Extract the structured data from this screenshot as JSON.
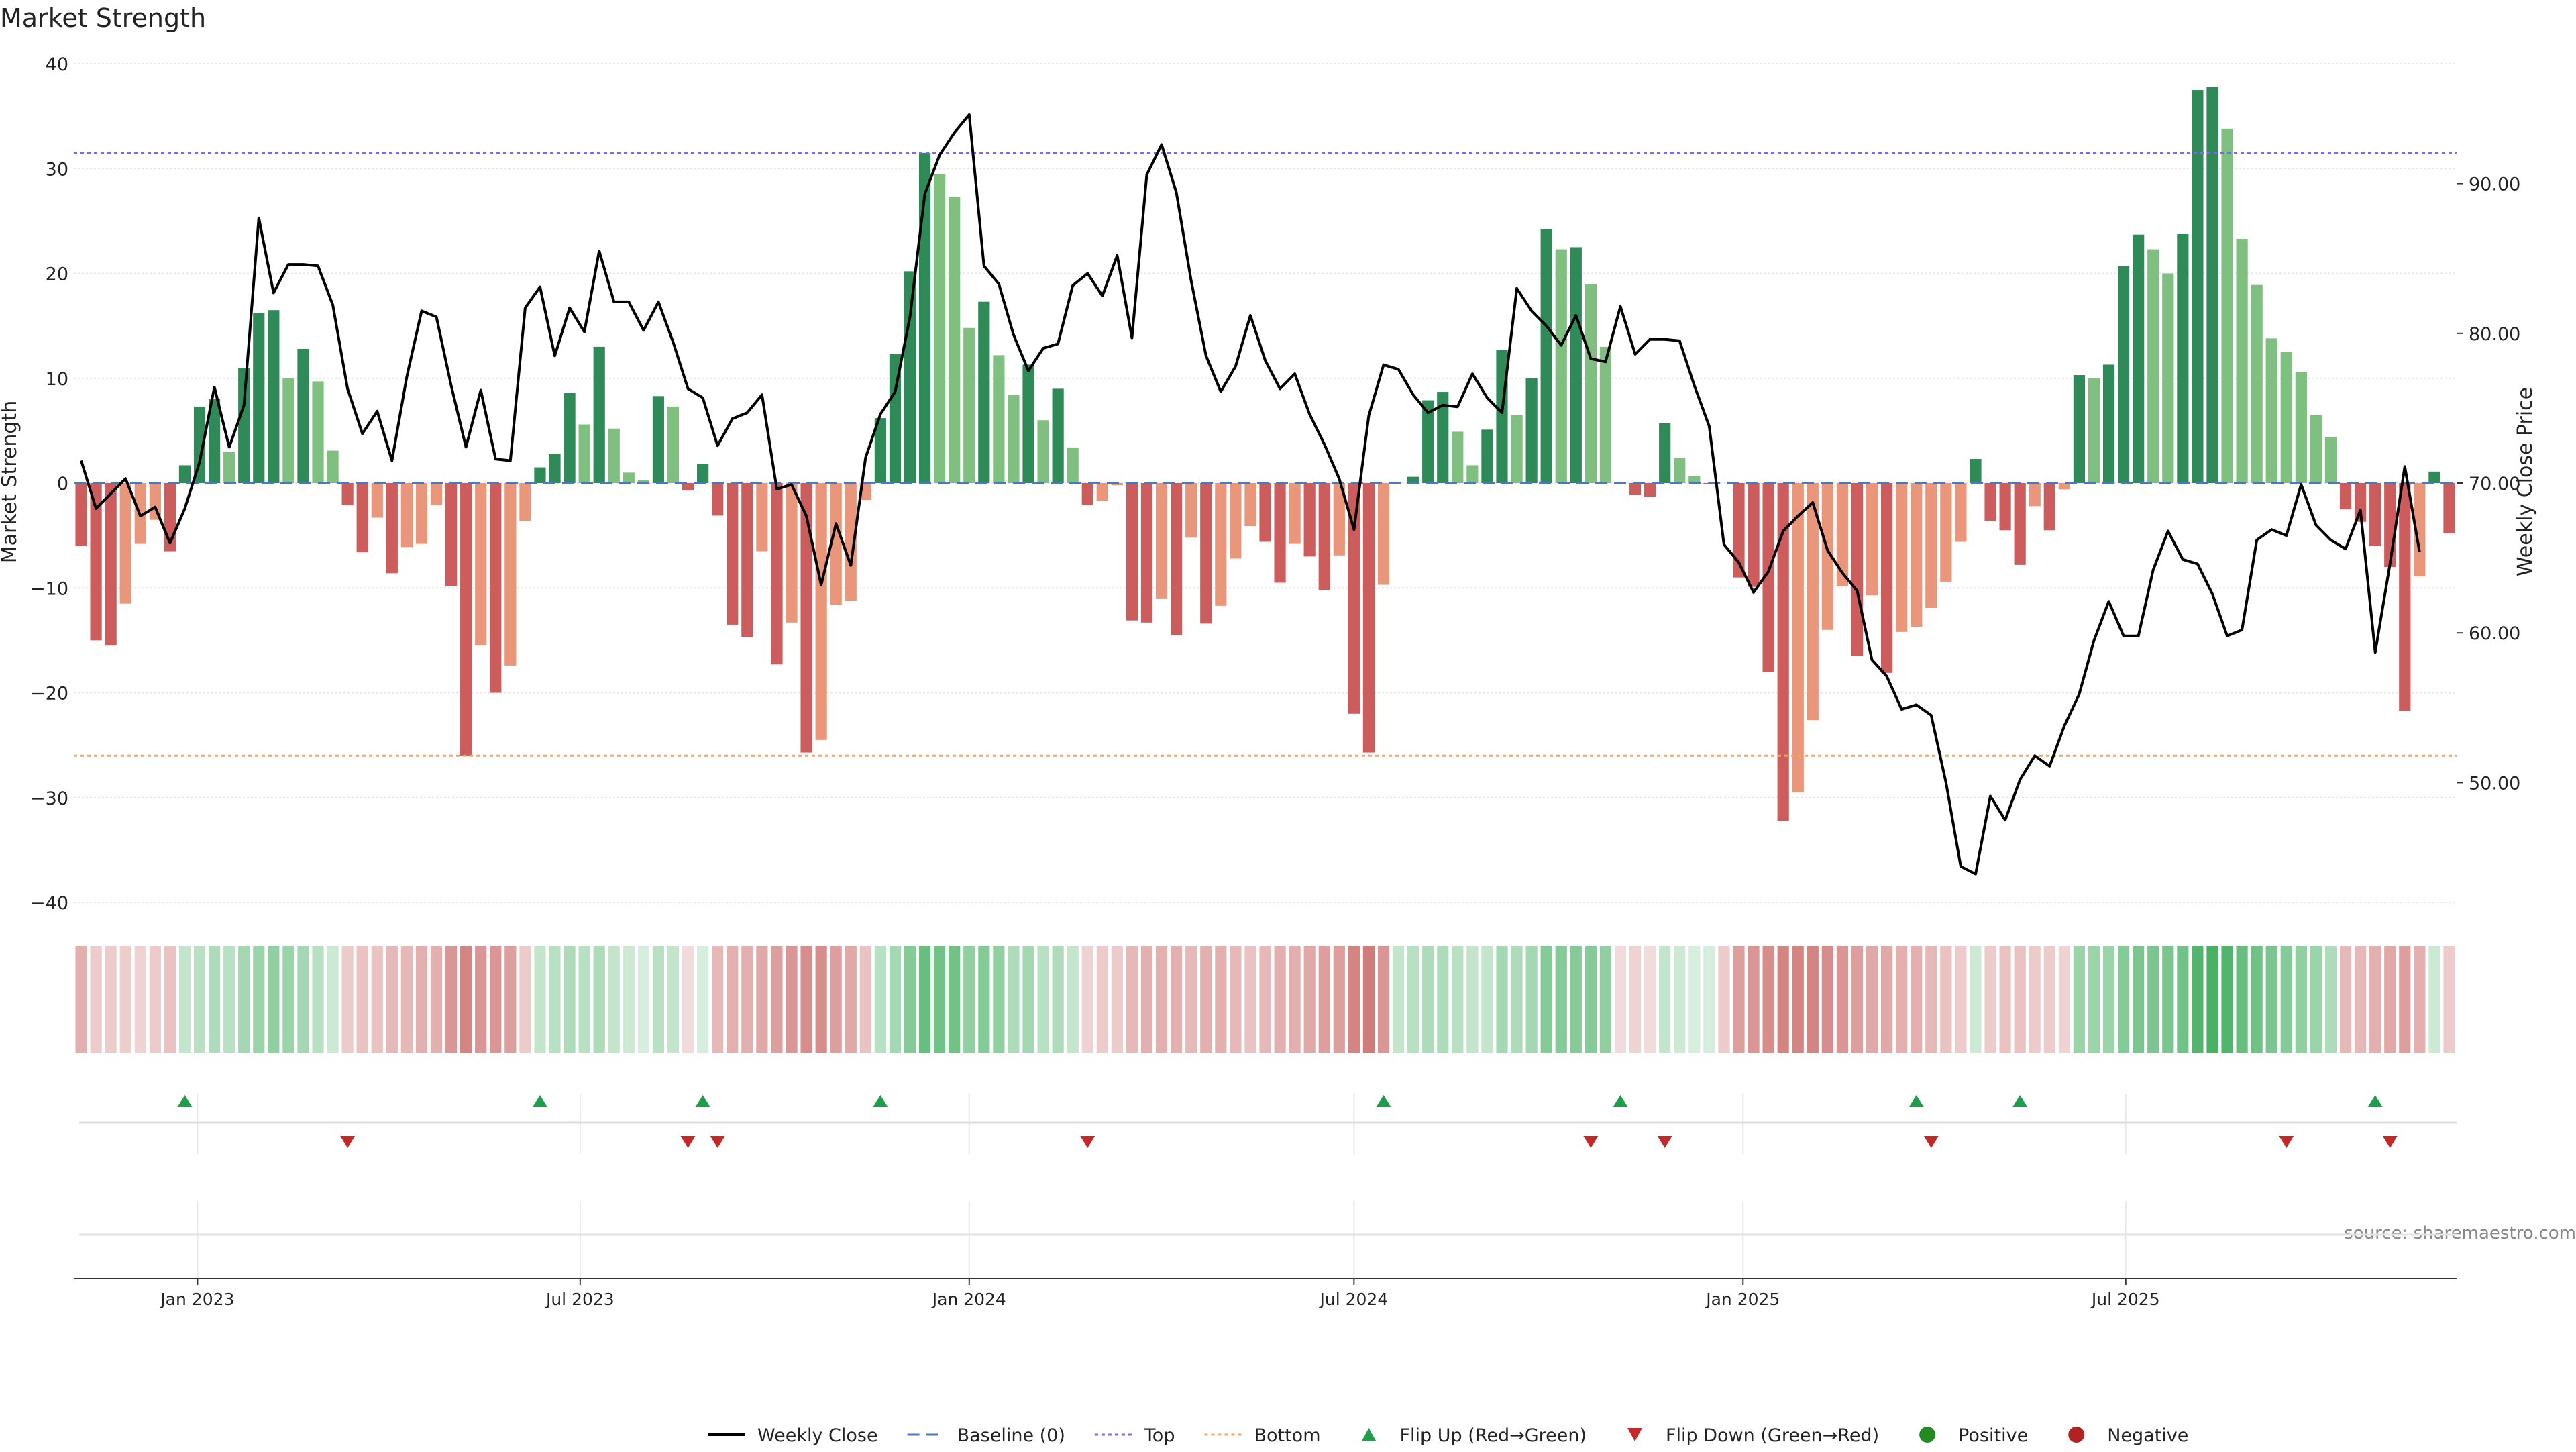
{
  "chart_data": {
    "type": "bar",
    "title": "Market Strength",
    "ylabel": "Market Strength",
    "y2label": "Weekly Close Price",
    "ylim": [
      -40,
      40
    ],
    "y2lim": [
      42,
      98
    ],
    "yticks": [
      40,
      30,
      20,
      10,
      0,
      -10,
      -20,
      -30,
      -40
    ],
    "yticklabels": [
      "40",
      "30",
      "20",
      "10",
      "0",
      "−10",
      "−20",
      "−30",
      "−40"
    ],
    "y2ticks": [
      90,
      80,
      70,
      60,
      50
    ],
    "y2ticklabels": [
      "90.00",
      "80.00",
      "70.00",
      "60.00",
      "50.00"
    ],
    "top_line": 31.5,
    "bottom_line": -26,
    "grid": true,
    "xaxis": {
      "start": "2022-11-07",
      "ticks": [
        {
          "label": "Jan 2023",
          "date": "2023-01-01"
        },
        {
          "label": "Jul 2023",
          "date": "2023-07-01"
        },
        {
          "label": "Jan 2024",
          "date": "2024-01-01"
        },
        {
          "label": "Jul 2024",
          "date": "2024-07-01"
        },
        {
          "label": "Jan 2025",
          "date": "2025-01-01"
        },
        {
          "label": "Jul 2025",
          "date": "2025-07-01"
        }
      ]
    },
    "strength": [
      -6,
      -15,
      -15.5,
      -11.5,
      -5.8,
      -3.5,
      -6.5,
      1.7,
      7.3,
      8,
      3,
      11,
      16.2,
      16.5,
      10,
      12.8,
      9.7,
      3.1,
      -2.1,
      -6.6,
      -3.3,
      -8.6,
      -6.1,
      -5.8,
      -2.1,
      -9.8,
      -26,
      -15.5,
      -20,
      -17.4,
      -3.6,
      1.5,
      2.8,
      8.6,
      5.6,
      13,
      5.2,
      1,
      0.3,
      8.3,
      7.3,
      -0.7,
      1.8,
      -3.1,
      -13.5,
      -14.7,
      -6.5,
      -17.3,
      -13.3,
      -25.7,
      -24.5,
      -11.6,
      -11.2,
      -1.6,
      6.2,
      12.3,
      20.2,
      31.5,
      29.5,
      27.3,
      14.8,
      17.3,
      12.2,
      8.4,
      11.3,
      6,
      9,
      3.4,
      -2.1,
      -1.7,
      -0.2,
      -13.1,
      -13.3,
      -11,
      -14.5,
      -5.2,
      -13.4,
      -11.7,
      -7.2,
      -4.1,
      -5.6,
      -9.5,
      -5.8,
      -7,
      -10.2,
      -6.9,
      -22,
      -25.7,
      -9.7,
      0,
      0.6,
      7.9,
      8.7,
      4.9,
      1.7,
      5.1,
      12.7,
      6.5,
      10,
      24.2,
      22.3,
      22.5,
      19,
      13,
      0,
      -1.1,
      -1.3,
      5.7,
      2.4,
      0.7,
      -0.1,
      0,
      -9,
      -9.9,
      -18,
      -32.2,
      -29.5,
      -22.6,
      -14,
      -9.8,
      -16.5,
      -10.7,
      -18.1,
      -14.2,
      -13.7,
      -11.9,
      -9.4,
      -5.6,
      2.3,
      -3.6,
      -4.5,
      -7.8,
      -2.2,
      -4.5,
      -0.6,
      10.3,
      10,
      11.3,
      20.7,
      23.7,
      22.3,
      20,
      23.8,
      37.5,
      37.8,
      33.8,
      23.3,
      18.9,
      13.8,
      12.5,
      10.6,
      6.5,
      4.4,
      -2.5,
      -3.7,
      -6,
      -8,
      -21.7,
      -8.9,
      1.1,
      -4.8
    ],
    "close": [
      71.5,
      68.3,
      69.3,
      70.3,
      67.8,
      68.4,
      66,
      68.3,
      71.4,
      76.4,
      72.4,
      75.2,
      87.7,
      82.7,
      84.6,
      84.6,
      84.5,
      81.9,
      76.3,
      73.3,
      74.8,
      71.5,
      77.1,
      81.5,
      81.1,
      76.5,
      72.4,
      76.2,
      71.6,
      71.5,
      81.7,
      83.1,
      78.5,
      81.7,
      80.1,
      85.5,
      82.1,
      82.1,
      80.2,
      82.1,
      79.4,
      76.3,
      75.7,
      72.5,
      74.3,
      74.7,
      75.9,
      69.6,
      69.9,
      67.8,
      63.2,
      67.3,
      64.5,
      71.7,
      74.6,
      76.1,
      81.1,
      89.3,
      91.9,
      93.4,
      94.6,
      84.5,
      83.3,
      79.9,
      77.5,
      79,
      79.3,
      83.2,
      84,
      82.5,
      85.2,
      79.7,
      90.6,
      92.6,
      89.4,
      83.5,
      78.5,
      76.1,
      77.8,
      81.2,
      78.2,
      76.3,
      77.3,
      74.6,
      72.6,
      70.3,
      66.9,
      74.5,
      77.9,
      77.6,
      75.9,
      74.7,
      75.2,
      75.1,
      77.3,
      75.7,
      74.7,
      83,
      81.5,
      80.5,
      79.2,
      81.2,
      78.3,
      78.1,
      81.8,
      78.6,
      79.6,
      79.6,
      79.5,
      76.5,
      73.8,
      65.9,
      64.7,
      62.7,
      64.1,
      66.8,
      67.8,
      68.7,
      65.5,
      64,
      62.8,
      58.2,
      57.1,
      54.9,
      55.2,
      54.5,
      50,
      44.4,
      43.9,
      49.1,
      47.5,
      50.2,
      51.8,
      51.1,
      53.8,
      55.9,
      59.5,
      62.1,
      59.8,
      59.8,
      64.2,
      66.8,
      64.9,
      64.6,
      62.6,
      59.8,
      60.2,
      66.2,
      66.9,
      66.5,
      69.9,
      67.2,
      66.2,
      65.6,
      68.2,
      58.7,
      64.6,
      71.1,
      65.4
    ],
    "heat": [
      -0.45,
      -0.3,
      -0.3,
      -0.28,
      -0.25,
      -0.3,
      -0.35,
      0.3,
      0.35,
      0.4,
      0.35,
      0.45,
      0.5,
      0.55,
      0.5,
      0.45,
      0.35,
      0.25,
      -0.3,
      -0.35,
      -0.35,
      -0.4,
      -0.4,
      -0.45,
      -0.45,
      -0.6,
      -0.7,
      -0.6,
      -0.6,
      -0.55,
      -0.3,
      0.3,
      0.35,
      0.4,
      0.35,
      0.4,
      0.3,
      0.25,
      0.2,
      0.35,
      0.3,
      -0.2,
      0.2,
      -0.4,
      -0.45,
      -0.45,
      -0.5,
      -0.55,
      -0.6,
      -0.65,
      -0.65,
      -0.55,
      -0.5,
      -0.35,
      0.35,
      0.45,
      0.6,
      0.75,
      0.7,
      0.7,
      0.55,
      0.6,
      0.55,
      0.4,
      0.45,
      0.35,
      0.4,
      0.3,
      -0.25,
      -0.3,
      -0.3,
      -0.4,
      -0.45,
      -0.45,
      -0.45,
      -0.4,
      -0.45,
      -0.45,
      -0.4,
      -0.35,
      -0.4,
      -0.45,
      -0.45,
      -0.5,
      -0.55,
      -0.55,
      -0.7,
      -0.75,
      -0.6,
      0.3,
      0.35,
      0.4,
      0.4,
      0.35,
      0.3,
      0.3,
      0.45,
      0.4,
      0.45,
      0.6,
      0.6,
      0.6,
      0.6,
      0.55,
      -0.2,
      -0.25,
      -0.2,
      0.3,
      0.25,
      0.2,
      0.2,
      -0.3,
      -0.55,
      -0.6,
      -0.65,
      -0.7,
      -0.7,
      -0.7,
      -0.65,
      -0.6,
      -0.55,
      -0.5,
      -0.5,
      -0.45,
      -0.45,
      -0.4,
      -0.35,
      -0.3,
      0.25,
      -0.3,
      -0.35,
      -0.35,
      -0.3,
      -0.3,
      -0.25,
      0.5,
      0.5,
      0.5,
      0.6,
      0.65,
      0.65,
      0.65,
      0.7,
      0.85,
      0.9,
      0.85,
      0.75,
      0.7,
      0.65,
      0.6,
      0.55,
      0.5,
      0.4,
      -0.4,
      -0.4,
      -0.45,
      -0.5,
      -0.55,
      -0.45,
      0.25,
      -0.3
    ],
    "flip_up": [
      7,
      31,
      42,
      54,
      88,
      104,
      124,
      131,
      155
    ],
    "flip_down": [
      18,
      41,
      43,
      68,
      102,
      107,
      125,
      149,
      156
    ],
    "colors": {
      "green_dark": "#2e8b57",
      "green_light": "#7fbf7f",
      "red_dark": "#cd5c5c",
      "red_light": "#e9967a",
      "line": "#000000",
      "baseline": "#4a78c2",
      "top": "#7b68ee",
      "bottom": "#f4a460",
      "flip_up": "#1e9e4a",
      "flip_down": "#c62828",
      "positive": "#228b22",
      "negative": "#b22222"
    },
    "legend": {
      "position": "bottom-center",
      "items": [
        {
          "label": "Weekly Close",
          "kind": "line",
          "icon": "solid-line-icon"
        },
        {
          "label": "Baseline (0)",
          "kind": "dash",
          "icon": "dashed-line-icon"
        },
        {
          "label": "Top",
          "kind": "dot-top",
          "icon": "dotted-line-icon"
        },
        {
          "label": "Bottom",
          "kind": "dot-bottom",
          "icon": "dotted-line-icon"
        },
        {
          "label": "Flip Up (Red→Green)",
          "kind": "tri-up",
          "icon": "triangle-up-icon"
        },
        {
          "label": "Flip Down (Green→Red)",
          "kind": "tri-down",
          "icon": "triangle-down-icon"
        },
        {
          "label": "Positive",
          "kind": "dot-pos",
          "icon": "circle-icon"
        },
        {
          "label": "Negative",
          "kind": "dot-neg",
          "icon": "circle-icon"
        }
      ]
    },
    "source": "source: sharemaestro.com"
  }
}
